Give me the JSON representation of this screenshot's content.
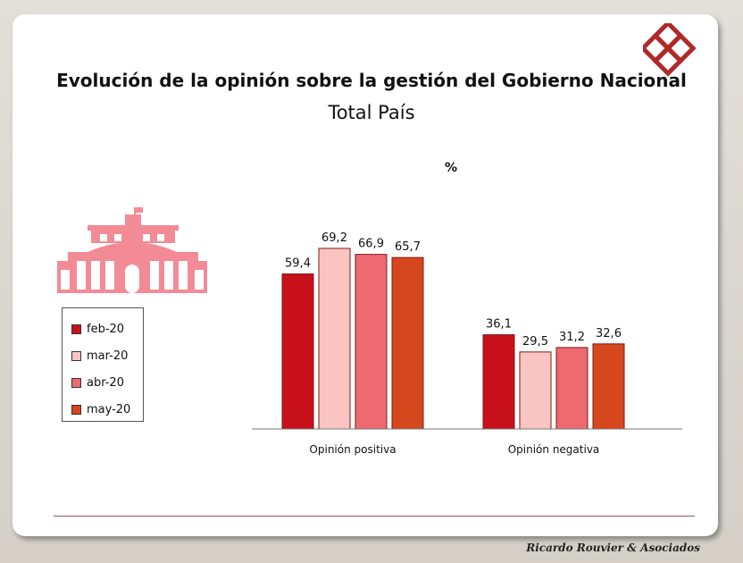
{
  "slide": {
    "title": "Evolución de la opinión sobre la gestión del Gobierno Nacional",
    "subtitle": "Total País",
    "unit": "%",
    "footer": "Ricardo Rouvier & Asociados"
  },
  "colors": {
    "feb-20": "#c8101a",
    "mar-20": "#f9c4c2",
    "abr-20": "#ee6a70",
    "may-20": "#d6471e",
    "building": "#f28b95",
    "logo": "#b22828"
  },
  "icons": [
    "government-building-icon",
    "company-logo-icon"
  ],
  "chart_data": {
    "type": "bar",
    "title": "Evolución de la opinión sobre la gestión del Gobierno Nacional",
    "subtitle": "Total País",
    "categories": [
      "Opinión positiva",
      "Opinión negativa"
    ],
    "series": [
      {
        "name": "feb-20",
        "values": [
          59.4,
          36.1
        ]
      },
      {
        "name": "mar-20",
        "values": [
          69.2,
          29.5
        ]
      },
      {
        "name": "abr-20",
        "values": [
          66.9,
          31.2
        ]
      },
      {
        "name": "may-20",
        "values": [
          65.7,
          32.6
        ]
      }
    ],
    "data_labels": [
      [
        "59,4",
        "36,1"
      ],
      [
        "69,2",
        "29,5"
      ],
      [
        "66,9",
        "31,2"
      ],
      [
        "65,7",
        "32,6"
      ]
    ],
    "ylabel": "%",
    "ylim": [
      0,
      75
    ],
    "grid": false,
    "legend": "left"
  }
}
